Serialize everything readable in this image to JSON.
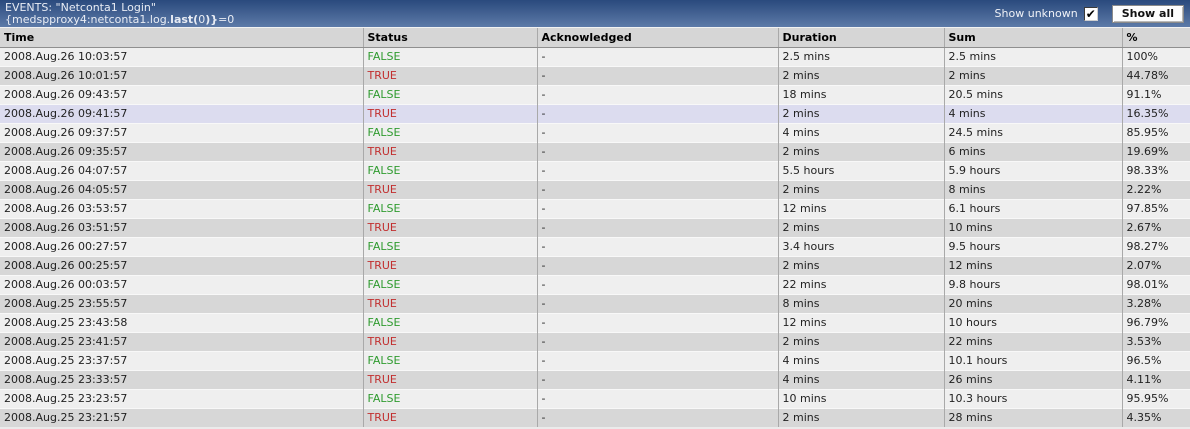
{
  "header": {
    "title": "EVENTS: \"Netconta1 Login\"",
    "expression": {
      "prefix": "{medspproxy4:netconta1.log.",
      "bold1": "last(",
      "mid": "0",
      "bold2": ")}",
      "suffix": "=0"
    },
    "show_unknown_label": "Show unknown",
    "show_unknown_checked": true,
    "check_glyph": "✔",
    "show_all_label": "Show all"
  },
  "table": {
    "columns": [
      "Time",
      "Status",
      "Acknowledged",
      "Duration",
      "Sum",
      "%"
    ],
    "rows": [
      {
        "time": "2008.Aug.26 10:03:57",
        "status": "FALSE",
        "acknowledged": "-",
        "duration": "2.5 mins",
        "sum": "2.5 mins",
        "pct": "100%",
        "highlight": false
      },
      {
        "time": "2008.Aug.26 10:01:57",
        "status": "TRUE",
        "acknowledged": "-",
        "duration": "2 mins",
        "sum": "2 mins",
        "pct": "44.78%",
        "highlight": false
      },
      {
        "time": "2008.Aug.26 09:43:57",
        "status": "FALSE",
        "acknowledged": "-",
        "duration": "18 mins",
        "sum": "20.5 mins",
        "pct": "91.1%",
        "highlight": false
      },
      {
        "time": "2008.Aug.26 09:41:57",
        "status": "TRUE",
        "acknowledged": "-",
        "duration": "2 mins",
        "sum": "4 mins",
        "pct": "16.35%",
        "highlight": true
      },
      {
        "time": "2008.Aug.26 09:37:57",
        "status": "FALSE",
        "acknowledged": "-",
        "duration": "4 mins",
        "sum": "24.5 mins",
        "pct": "85.95%",
        "highlight": false
      },
      {
        "time": "2008.Aug.26 09:35:57",
        "status": "TRUE",
        "acknowledged": "-",
        "duration": "2 mins",
        "sum": "6 mins",
        "pct": "19.69%",
        "highlight": false
      },
      {
        "time": "2008.Aug.26 04:07:57",
        "status": "FALSE",
        "acknowledged": "-",
        "duration": "5.5 hours",
        "sum": "5.9 hours",
        "pct": "98.33%",
        "highlight": false
      },
      {
        "time": "2008.Aug.26 04:05:57",
        "status": "TRUE",
        "acknowledged": "-",
        "duration": "2 mins",
        "sum": "8 mins",
        "pct": "2.22%",
        "highlight": false
      },
      {
        "time": "2008.Aug.26 03:53:57",
        "status": "FALSE",
        "acknowledged": "-",
        "duration": "12 mins",
        "sum": "6.1 hours",
        "pct": "97.85%",
        "highlight": false
      },
      {
        "time": "2008.Aug.26 03:51:57",
        "status": "TRUE",
        "acknowledged": "-",
        "duration": "2 mins",
        "sum": "10 mins",
        "pct": "2.67%",
        "highlight": false
      },
      {
        "time": "2008.Aug.26 00:27:57",
        "status": "FALSE",
        "acknowledged": "-",
        "duration": "3.4 hours",
        "sum": "9.5 hours",
        "pct": "98.27%",
        "highlight": false
      },
      {
        "time": "2008.Aug.26 00:25:57",
        "status": "TRUE",
        "acknowledged": "-",
        "duration": "2 mins",
        "sum": "12 mins",
        "pct": "2.07%",
        "highlight": false
      },
      {
        "time": "2008.Aug.26 00:03:57",
        "status": "FALSE",
        "acknowledged": "-",
        "duration": "22 mins",
        "sum": "9.8 hours",
        "pct": "98.01%",
        "highlight": false
      },
      {
        "time": "2008.Aug.25 23:55:57",
        "status": "TRUE",
        "acknowledged": "-",
        "duration": "8 mins",
        "sum": "20 mins",
        "pct": "3.28%",
        "highlight": false
      },
      {
        "time": "2008.Aug.25 23:43:58",
        "status": "FALSE",
        "acknowledged": "-",
        "duration": "12 mins",
        "sum": "10 hours",
        "pct": "96.79%",
        "highlight": false
      },
      {
        "time": "2008.Aug.25 23:41:57",
        "status": "TRUE",
        "acknowledged": "-",
        "duration": "2 mins",
        "sum": "22 mins",
        "pct": "3.53%",
        "highlight": false
      },
      {
        "time": "2008.Aug.25 23:37:57",
        "status": "FALSE",
        "acknowledged": "-",
        "duration": "4 mins",
        "sum": "10.1 hours",
        "pct": "96.5%",
        "highlight": false
      },
      {
        "time": "2008.Aug.25 23:33:57",
        "status": "TRUE",
        "acknowledged": "-",
        "duration": "4 mins",
        "sum": "26 mins",
        "pct": "4.11%",
        "highlight": false
      },
      {
        "time": "2008.Aug.25 23:23:57",
        "status": "FALSE",
        "acknowledged": "-",
        "duration": "10 mins",
        "sum": "10.3 hours",
        "pct": "95.95%",
        "highlight": false
      },
      {
        "time": "2008.Aug.25 23:21:57",
        "status": "TRUE",
        "acknowledged": "-",
        "duration": "2 mins",
        "sum": "28 mins",
        "pct": "4.35%",
        "highlight": false
      }
    ]
  },
  "colors": {
    "title_top": "#2a4a7d",
    "title_bottom": "#5d7aa8",
    "header_bg": "#d6d6d6",
    "row_light": "#efefef",
    "row_dark": "#d7d7d7",
    "row_highlight": "#dcdcef",
    "status_false": "#2f9b2f",
    "status_true": "#c22f2f"
  }
}
